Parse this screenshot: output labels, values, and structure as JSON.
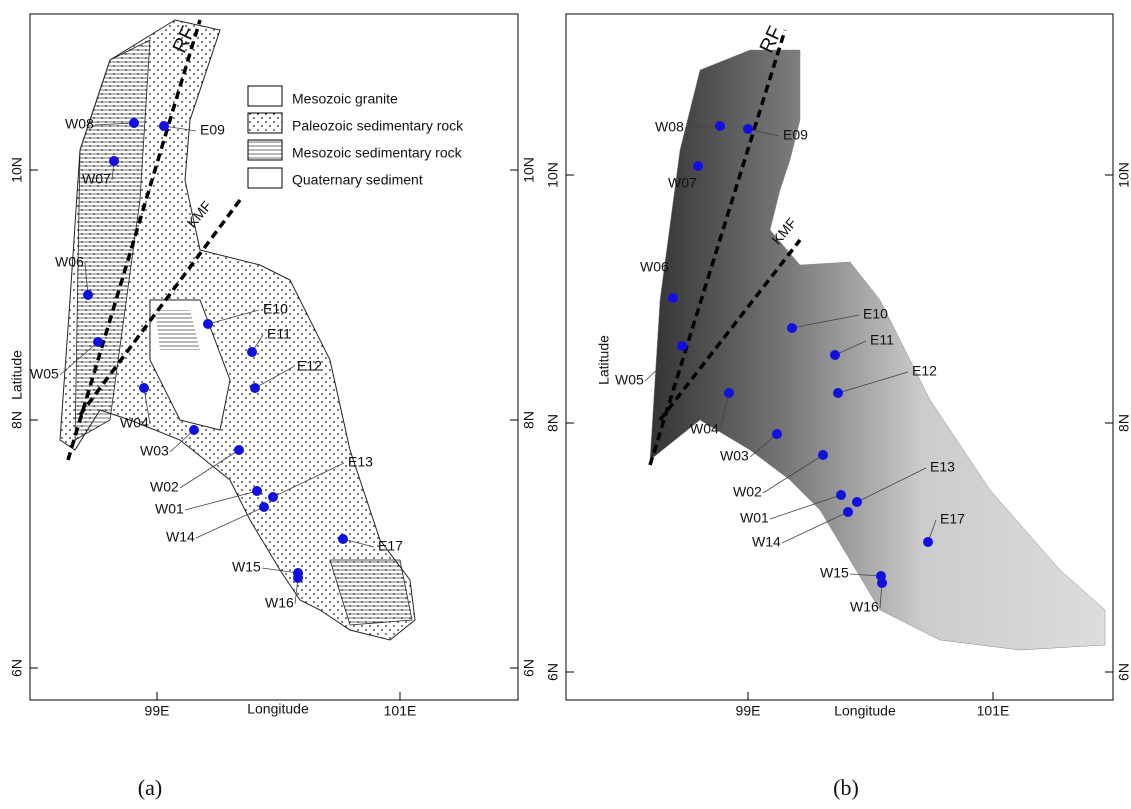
{
  "panels": [
    {
      "caption": "(a)",
      "x_label": "Longitude",
      "y_label": "Latitude",
      "x_ticks": [
        "99E",
        "101E"
      ],
      "y_ticks": [
        "10N",
        "8N",
        "6N"
      ],
      "faults": [
        "RF",
        "KMF"
      ],
      "legend": [
        "Mesozoic granite",
        "Paleozoic sedimentary rock",
        "Mesozoic sedimentary rock",
        "Quaternary sediment"
      ],
      "stations": [
        "W08",
        "E09",
        "W07",
        "W06",
        "W05",
        "E10",
        "E11",
        "E12",
        "W04",
        "W03",
        "W02",
        "E13",
        "W01",
        "W14",
        "E17",
        "W15",
        "W16"
      ]
    },
    {
      "caption": "(b)",
      "x_label": "Longitude",
      "y_label": "Latitude",
      "x_ticks": [
        "99E",
        "101E"
      ],
      "y_ticks": [
        "10N",
        "8N",
        "6N"
      ],
      "faults": [
        "RF",
        "KMF"
      ],
      "stations": [
        "W08",
        "E09",
        "W07",
        "W06",
        "W05",
        "E10",
        "E11",
        "E12",
        "W04",
        "W03",
        "W02",
        "E13",
        "W01",
        "W14",
        "E17",
        "W15",
        "W16"
      ]
    }
  ]
}
